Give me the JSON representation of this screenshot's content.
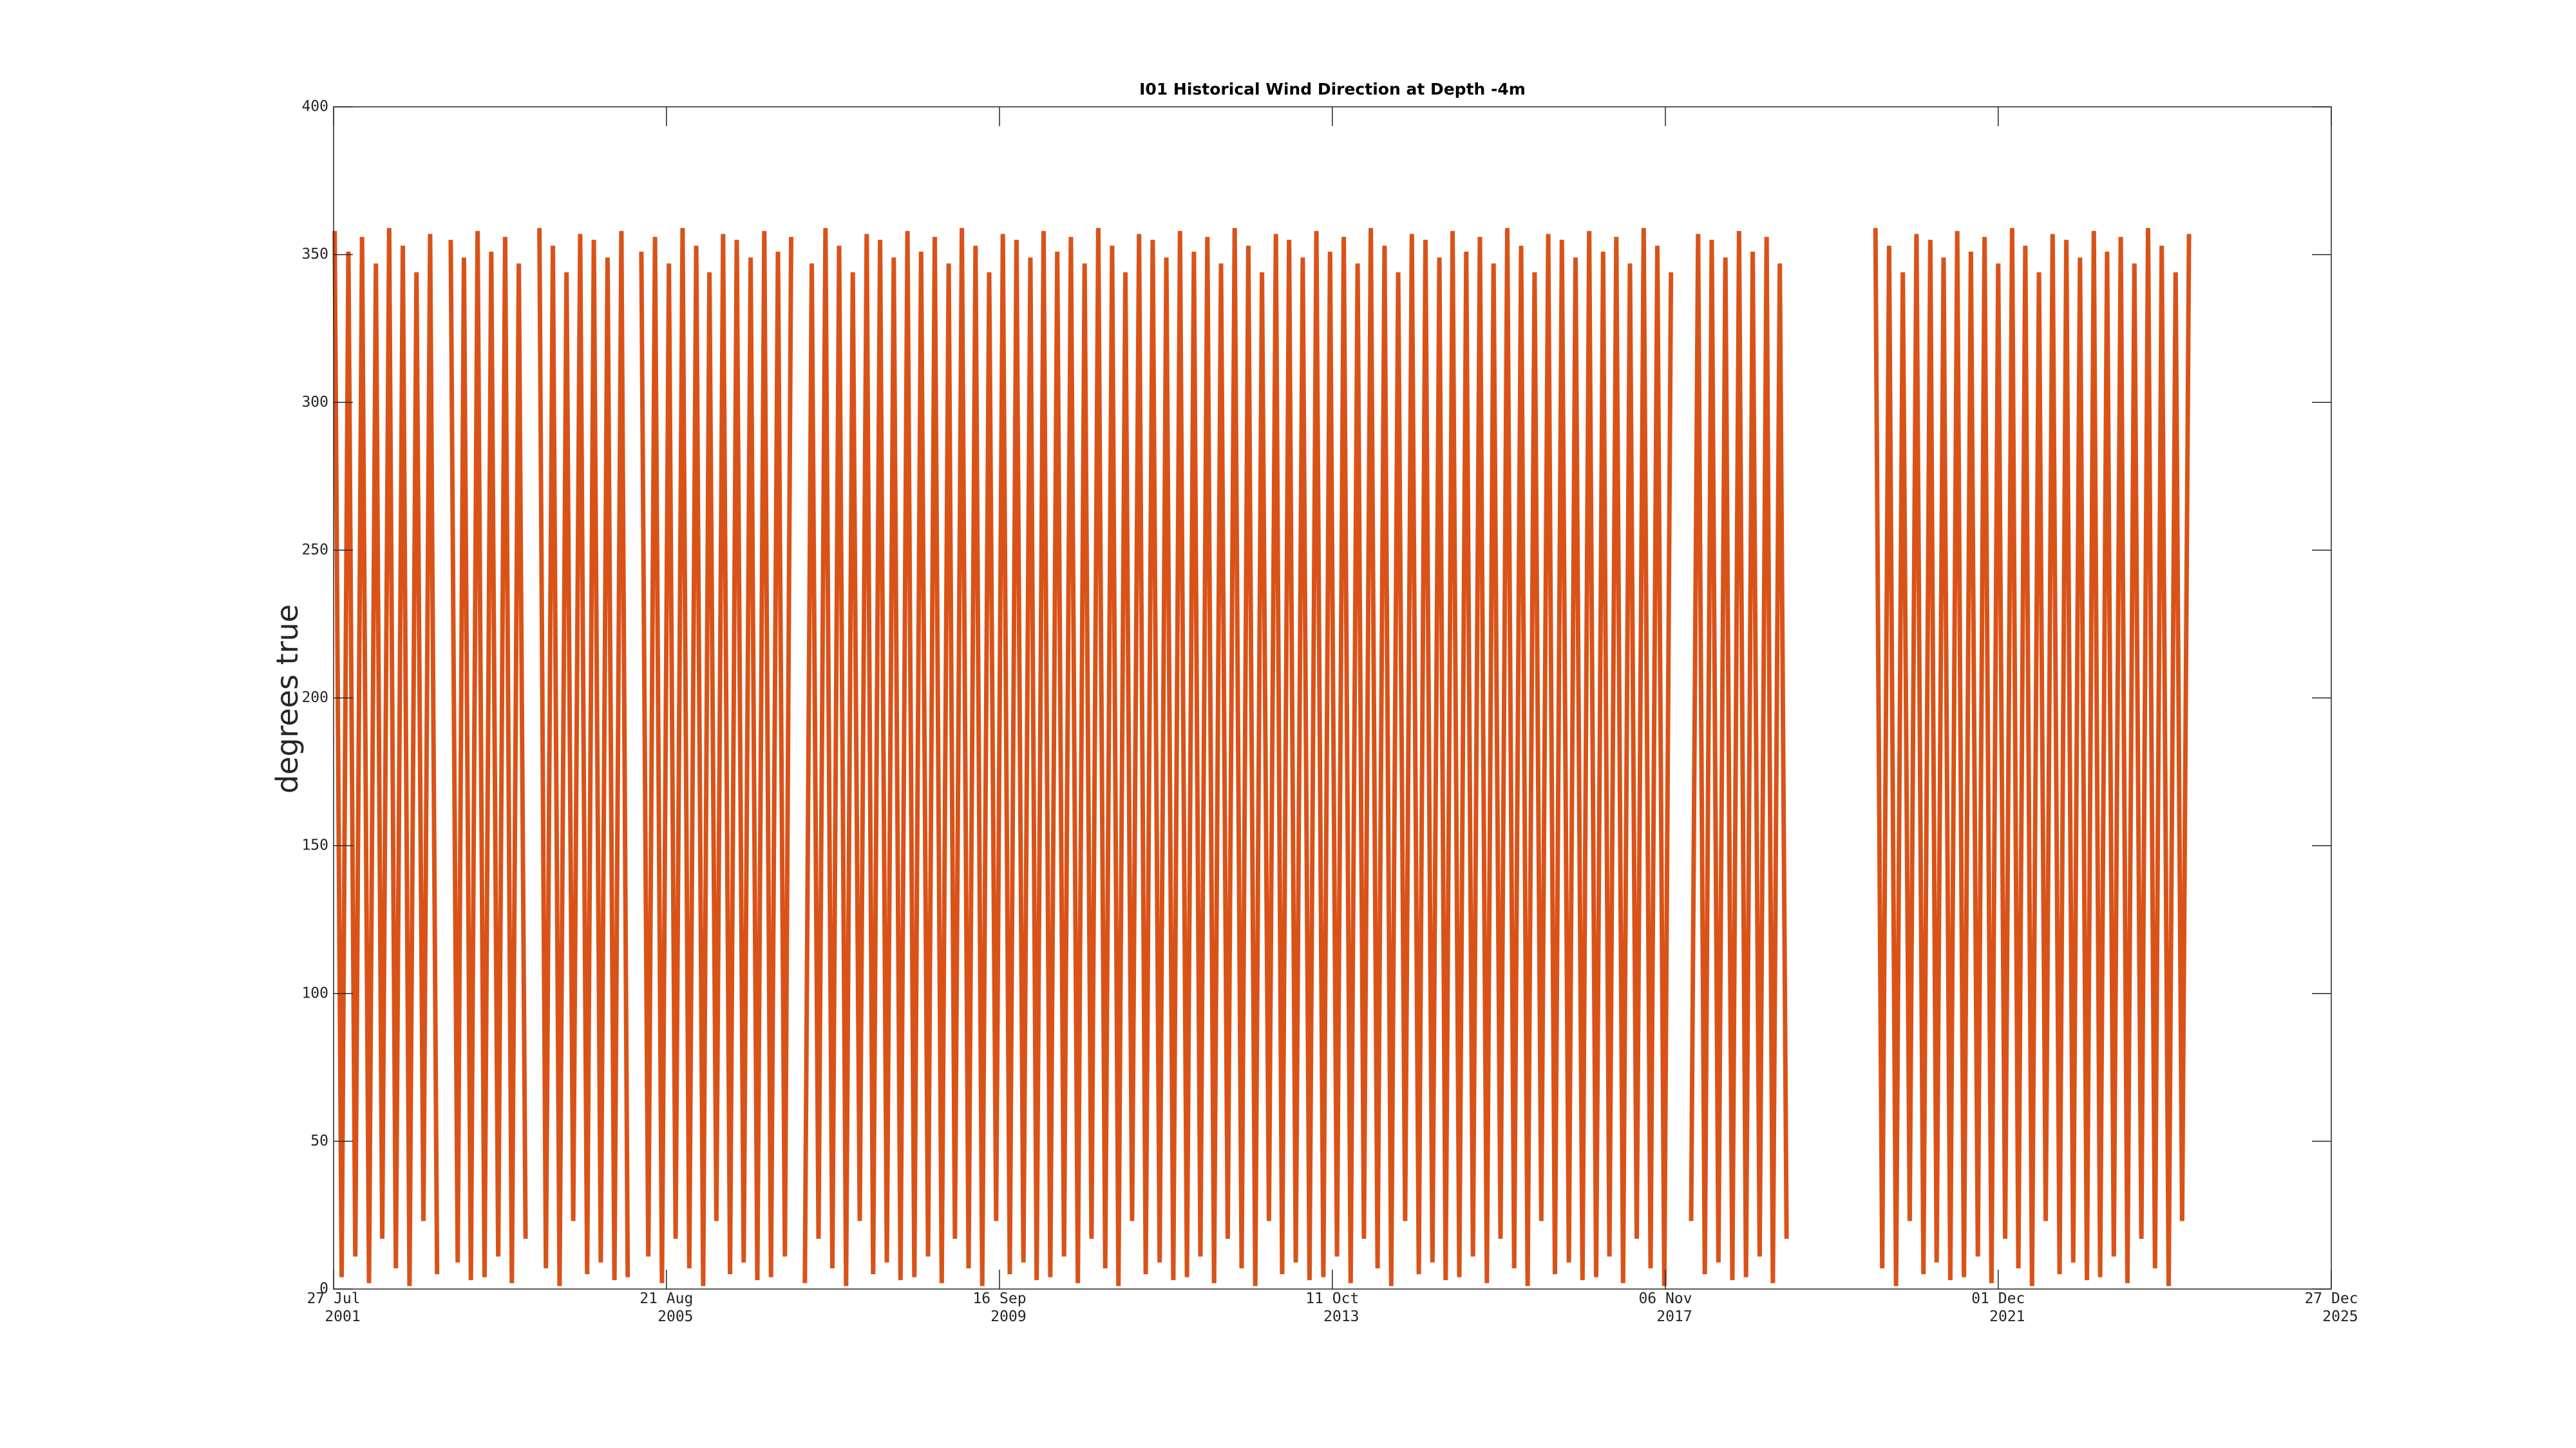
{
  "chart_data": {
    "type": "line",
    "title": "I01 Historical Wind Direction at Depth -4m",
    "ylabel": "degrees true",
    "color": "#d95319",
    "xlim": [
      "2001-07-27",
      "2025-12-27"
    ],
    "xticks": [
      {
        "value": "2001-07-27",
        "label": "27 Jul\n2001"
      },
      {
        "value": "2005-08-21",
        "label": "21 Aug\n2005"
      },
      {
        "value": "2009-09-16",
        "label": "16 Sep\n2009"
      },
      {
        "value": "2013-10-11",
        "label": "11 Oct\n2013"
      },
      {
        "value": "2017-11-06",
        "label": "06 Nov\n2017"
      },
      {
        "value": "2021-12-01",
        "label": "01 Dec\n2021"
      },
      {
        "value": "2025-12-27",
        "label": "27 Dec\n2025"
      }
    ],
    "ylim": [
      0,
      400
    ],
    "yticks": [
      0,
      50,
      100,
      150,
      200,
      250,
      300,
      350,
      400
    ],
    "x": [
      "2001-08-01",
      "2001-09-01",
      "2001-10-01",
      "2001-11-01",
      "2001-12-01",
      "2002-01-01",
      "2002-02-01",
      "2002-03-01",
      "2002-04-01",
      "2002-05-01",
      "2002-06-01",
      "2002-07-01",
      "2002-08-01",
      "2002-09-01",
      "2002-10-01",
      "2002-11-01",
      "2002-12-01",
      "2003-01-01",
      "2003-02-01",
      "2003-03-01",
      "2003-04-01",
      "2003-05-01",
      "2003-06-01",
      "2003-07-01",
      "2003-08-01",
      "2003-09-01",
      "2003-10-01",
      "2003-11-01",
      "2003-12-01",
      "2004-01-01",
      "2004-02-01",
      "2004-03-01",
      "2004-04-01",
      "2004-05-01",
      "2004-06-01",
      "2004-07-01",
      "2004-08-01",
      "2004-09-01",
      "2004-10-01",
      "2004-11-01",
      "2004-12-01",
      "2005-01-01",
      "2005-02-01",
      "2005-03-01",
      "2005-04-01",
      "2005-05-01",
      "2005-06-01",
      "2005-07-01",
      "2005-08-01",
      "2005-09-01",
      "2005-10-01",
      "2005-11-01",
      "2005-12-01",
      "2006-01-01",
      "2006-02-01",
      "2006-03-01",
      "2006-04-01",
      "2006-05-01",
      "2006-06-01",
      "2006-07-01",
      "2006-08-01",
      "2006-09-01",
      "2006-10-01",
      "2006-11-01",
      "2006-12-01",
      "2007-01-01",
      "2007-02-01",
      "2007-03-01",
      "2007-04-01",
      "2007-05-01",
      "2007-06-01",
      "2007-07-01",
      "2007-08-01",
      "2007-09-01",
      "2007-10-01",
      "2007-11-01",
      "2007-12-01",
      "2008-01-01",
      "2008-02-01",
      "2008-03-01",
      "2008-04-01",
      "2008-05-01",
      "2008-06-01",
      "2008-07-01",
      "2008-08-01",
      "2008-09-01",
      "2008-10-01",
      "2008-11-01",
      "2008-12-01",
      "2009-01-01",
      "2009-02-01",
      "2009-03-01",
      "2009-04-01",
      "2009-05-01",
      "2009-06-01",
      "2009-07-01",
      "2009-08-01",
      "2009-09-01",
      "2009-10-01",
      "2009-11-01",
      "2009-12-01",
      "2010-01-01",
      "2010-02-01",
      "2010-03-01",
      "2010-04-01",
      "2010-05-01",
      "2010-06-01",
      "2010-07-01",
      "2010-08-01",
      "2010-09-01",
      "2010-10-01",
      "2010-11-01",
      "2010-12-01",
      "2011-01-01",
      "2011-02-01",
      "2011-03-01",
      "2011-04-01",
      "2011-05-01",
      "2011-06-01",
      "2011-07-01",
      "2011-08-01",
      "2011-09-01",
      "2011-10-01",
      "2011-11-01",
      "2011-12-01",
      "2012-01-01",
      "2012-02-01",
      "2012-03-01",
      "2012-04-01",
      "2012-05-01",
      "2012-06-01",
      "2012-07-01",
      "2012-08-01",
      "2012-09-01",
      "2012-10-01",
      "2012-11-01",
      "2012-12-01",
      "2013-01-01",
      "2013-02-01",
      "2013-03-01",
      "2013-04-01",
      "2013-05-01",
      "2013-06-01",
      "2013-07-01",
      "2013-08-01",
      "2013-09-01",
      "2013-10-01",
      "2013-11-01",
      "2013-12-01",
      "2014-01-01",
      "2014-02-01",
      "2014-03-01",
      "2014-04-01",
      "2014-05-01",
      "2014-06-01",
      "2014-07-01",
      "2014-08-01",
      "2014-09-01",
      "2014-10-01",
      "2014-11-01",
      "2014-12-01",
      "2015-01-01",
      "2015-02-01",
      "2015-03-01",
      "2015-04-01",
      "2015-05-01",
      "2015-06-01",
      "2015-07-01",
      "2015-08-01",
      "2015-09-01",
      "2015-10-01",
      "2015-11-01",
      "2015-12-01",
      "2016-01-01",
      "2016-02-01",
      "2016-03-01",
      "2016-04-01",
      "2016-05-01",
      "2016-06-01",
      "2016-07-01",
      "2016-08-01",
      "2016-09-01",
      "2016-10-01",
      "2016-11-01",
      "2016-12-01",
      "2017-01-01",
      "2017-02-01",
      "2017-03-01",
      "2017-04-01",
      "2017-05-01",
      "2017-06-01",
      "2017-07-01",
      "2017-08-01",
      "2017-09-01",
      "2017-10-01",
      "2017-11-01",
      "2017-12-01",
      "2018-01-01",
      "2018-03-01",
      "2018-04-01",
      "2018-05-01",
      "2018-06-01",
      "2018-07-01",
      "2018-08-01",
      "2018-09-01",
      "2018-10-01",
      "2018-11-01",
      "2018-12-01",
      "2019-01-01",
      "2019-02-01",
      "2019-03-01",
      "2019-04-01",
      "2019-05-01",
      "2019-06-01",
      "2020-06-01",
      "2020-07-01",
      "2020-08-01",
      "2020-09-01",
      "2020-10-01",
      "2020-11-01",
      "2020-12-01",
      "2021-01-01",
      "2021-02-01",
      "2021-03-01",
      "2021-04-01",
      "2021-05-01",
      "2021-06-01",
      "2021-07-01",
      "2021-08-01",
      "2021-09-01",
      "2021-10-01",
      "2021-11-01",
      "2021-12-01",
      "2022-01-01",
      "2022-02-01",
      "2022-03-01",
      "2022-04-01",
      "2022-05-01",
      "2022-06-01",
      "2022-07-01",
      "2022-08-01",
      "2022-09-01",
      "2022-10-01",
      "2022-11-01",
      "2022-12-01",
      "2023-01-01",
      "2023-02-01",
      "2023-03-01",
      "2023-04-01",
      "2023-05-01",
      "2023-06-01",
      "2023-07-01",
      "2023-08-01",
      "2023-09-01",
      "2023-10-01",
      "2023-11-01",
      "2023-12-01",
      "2024-01-01",
      "2024-02-01",
      "2024-03-01",
      "2024-04-01"
    ],
    "values": [
      358,
      4,
      351,
      11,
      356,
      2,
      347,
      17,
      359,
      7,
      353,
      1,
      344,
      23,
      357,
      5,
      null,
      355,
      9,
      349,
      3,
      358,
      4,
      351,
      11,
      356,
      2,
      347,
      17,
      null,
      359,
      7,
      353,
      1,
      344,
      23,
      357,
      5,
      355,
      9,
      349,
      3,
      358,
      4,
      null,
      351,
      11,
      356,
      2,
      347,
      17,
      359,
      7,
      353,
      1,
      344,
      23,
      357,
      5,
      355,
      9,
      349,
      3,
      358,
      4,
      351,
      11,
      356,
      null,
      2,
      347,
      17,
      359,
      7,
      353,
      1,
      344,
      23,
      357,
      5,
      355,
      9,
      349,
      3,
      358,
      4,
      351,
      11,
      356,
      2,
      347,
      17,
      359,
      7,
      353,
      1,
      344,
      23,
      357,
      5,
      355,
      9,
      349,
      3,
      358,
      4,
      351,
      11,
      356,
      2,
      347,
      17,
      359,
      7,
      353,
      1,
      344,
      23,
      357,
      5,
      355,
      9,
      349,
      3,
      358,
      4,
      351,
      11,
      356,
      2,
      347,
      17,
      359,
      7,
      353,
      1,
      344,
      23,
      357,
      5,
      355,
      9,
      349,
      3,
      358,
      4,
      351,
      11,
      356,
      2,
      347,
      17,
      359,
      7,
      353,
      1,
      344,
      23,
      357,
      5,
      355,
      9,
      349,
      3,
      358,
      4,
      351,
      11,
      356,
      2,
      347,
      17,
      359,
      7,
      353,
      1,
      344,
      23,
      357,
      5,
      355,
      9,
      349,
      3,
      358,
      4,
      351,
      11,
      356,
      2,
      347,
      17,
      359,
      7,
      353,
      1,
      344,
      null,
      23,
      357,
      5,
      355,
      9,
      349,
      3,
      358,
      4,
      351,
      11,
      356,
      2,
      347,
      17,
      null,
      359,
      7,
      353,
      1,
      344,
      23,
      357,
      5,
      355,
      9,
      349,
      3,
      358,
      4,
      351,
      11,
      356,
      2,
      347,
      17,
      359,
      7,
      353,
      1,
      344,
      23,
      357,
      5,
      355,
      9,
      349,
      3,
      358,
      4,
      351,
      11,
      356,
      2,
      347,
      17,
      359,
      7,
      353,
      1,
      344,
      23,
      357
    ]
  }
}
